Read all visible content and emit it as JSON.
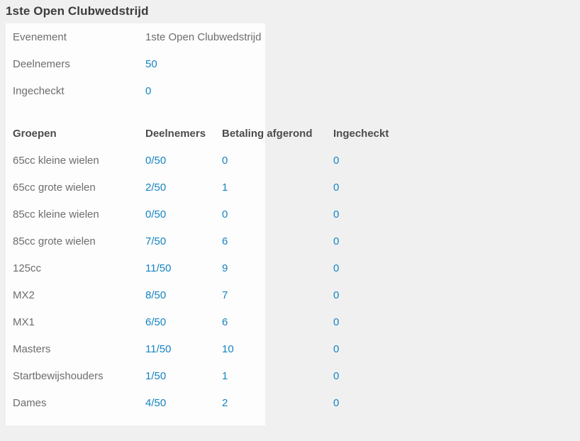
{
  "page_title": "1ste Open Clubwedstrijd",
  "colors": {
    "link": "#1584c2",
    "page_background": "#f0f0f1",
    "panel_background": "#fdfdfd"
  },
  "summary": {
    "rows": [
      {
        "label": "Evenement",
        "value": "1ste Open Clubwedstrijd"
      },
      {
        "label": "Deelnemers",
        "value": "50"
      },
      {
        "label": "Ingecheckt",
        "value": "0"
      }
    ]
  },
  "groups_table": {
    "headers": [
      "Groepen",
      "Deelnemers",
      "Betaling afgerond",
      "Ingecheckt"
    ],
    "rows": [
      {
        "group": "65cc kleine wielen",
        "deelnemers": "0/50",
        "betaling": "0",
        "ingecheckt": "0"
      },
      {
        "group": "65cc grote wielen",
        "deelnemers": "2/50",
        "betaling": "1",
        "ingecheckt": "0"
      },
      {
        "group": "85cc kleine wielen",
        "deelnemers": "0/50",
        "betaling": "0",
        "ingecheckt": "0"
      },
      {
        "group": "85cc grote wielen",
        "deelnemers": "7/50",
        "betaling": "6",
        "ingecheckt": "0"
      },
      {
        "group": "125cc",
        "deelnemers": "11/50",
        "betaling": "9",
        "ingecheckt": "0"
      },
      {
        "group": "MX2",
        "deelnemers": "8/50",
        "betaling": "7",
        "ingecheckt": "0"
      },
      {
        "group": "MX1",
        "deelnemers": "6/50",
        "betaling": "6",
        "ingecheckt": "0"
      },
      {
        "group": "Masters",
        "deelnemers": "11/50",
        "betaling": "10",
        "ingecheckt": "0"
      },
      {
        "group": "Startbewijshouders",
        "deelnemers": "1/50",
        "betaling": "1",
        "ingecheckt": "0"
      },
      {
        "group": "Dames",
        "deelnemers": "4/50",
        "betaling": "2",
        "ingecheckt": "0"
      }
    ]
  }
}
